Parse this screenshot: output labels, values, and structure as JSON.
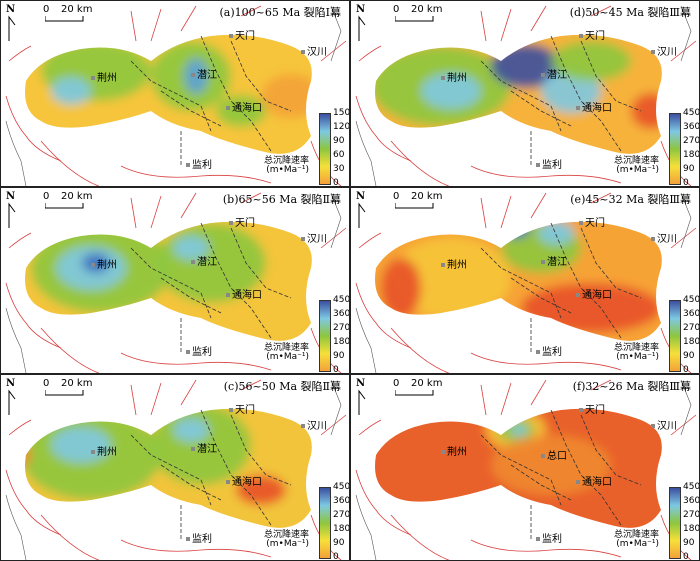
{
  "north_label": "N",
  "scale": {
    "zero": "0",
    "length": "20 km"
  },
  "cities": {
    "jingzhou": "荆州",
    "qianjiang": "潜江",
    "tianmen": "天门",
    "hanchuan": "汉川",
    "tonghaikou": "通海口",
    "jianli": "监利",
    "zongkou": "总口"
  },
  "colorbar_label": {
    "line1": "总沉降速率",
    "line2": "(m•Ma⁻¹)"
  },
  "colors": {
    "low": "#f7e13a",
    "mid": "#8dc63f",
    "high": "#3b4fa0",
    "hot": "#e8512a",
    "orange": "#f6a336",
    "lightblue": "#7ec8e3",
    "boundary_red": "#d94040"
  },
  "panels": [
    {
      "id": "a",
      "title": "(a)100~65 Ma  裂陷Ⅰ幕",
      "ticks": [
        "150",
        "120",
        "90",
        "60",
        "30",
        "0"
      ]
    },
    {
      "id": "d",
      "title": "(d)50~45 Ma  裂陷Ⅲ幕",
      "ticks": [
        "450",
        "360",
        "270",
        "180",
        "90",
        "0"
      ]
    },
    {
      "id": "b",
      "title": "(b)65~56 Ma  裂陷Ⅱ幕",
      "ticks": [
        "450",
        "360",
        "270",
        "180",
        "90",
        "0"
      ]
    },
    {
      "id": "e",
      "title": "(e)45~32 Ma  裂陷Ⅲ幕",
      "ticks": [
        "450",
        "360",
        "270",
        "180",
        "90",
        "0"
      ]
    },
    {
      "id": "c",
      "title": "(c)56~50 Ma  裂陷Ⅱ幕",
      "ticks": [
        "450",
        "360",
        "270",
        "180",
        "90",
        "0"
      ]
    },
    {
      "id": "f",
      "title": "(f)32~26 Ma  裂陷Ⅲ幕",
      "ticks": [
        "450",
        "360",
        "270",
        "180",
        "90",
        "0"
      ]
    }
  ]
}
